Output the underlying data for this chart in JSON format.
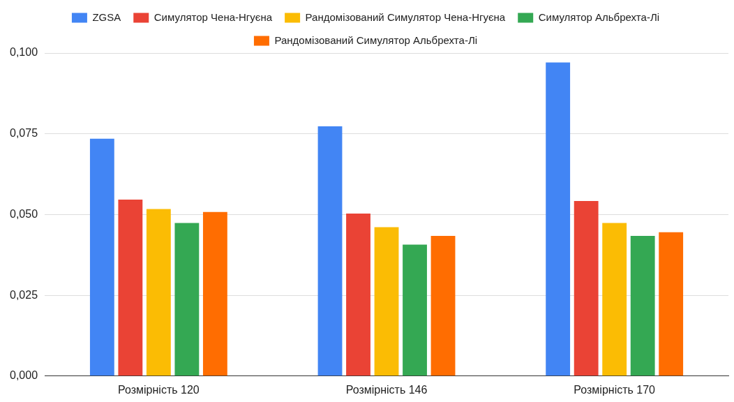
{
  "chart_data": {
    "type": "bar",
    "categories": [
      "Розмірність 120",
      "Розмірність 146",
      "Розмірність 170"
    ],
    "series": [
      {
        "name": "ZGSA",
        "color": "#4285f4",
        "values": [
          0.0735,
          0.0773,
          0.0971
        ]
      },
      {
        "name": "Симулятор Чена-Нгуєна",
        "color": "#ea4335",
        "values": [
          0.0546,
          0.0503,
          0.0542
        ]
      },
      {
        "name": "Рандомізований Симулятор Чена-Нгуєна",
        "color": "#fbbc04",
        "values": [
          0.0517,
          0.0461,
          0.0474
        ]
      },
      {
        "name": "Симулятор Альбрехта-Лі",
        "color": "#34a853",
        "values": [
          0.0474,
          0.0407,
          0.0434
        ]
      },
      {
        "name": "Рандомізований Симулятор Альбрехта-Лі",
        "color": "#ff6d01",
        "values": [
          0.0508,
          0.0434,
          0.0445
        ]
      }
    ],
    "ylim": [
      0,
      0.1
    ],
    "yticks": [
      {
        "value": 0,
        "label": "0,000"
      },
      {
        "value": 0.025,
        "label": "0,025"
      },
      {
        "value": 0.05,
        "label": "0,050"
      },
      {
        "value": 0.075,
        "label": "0,075"
      },
      {
        "value": 0.1,
        "label": "0,100"
      }
    ],
    "grid": "y",
    "legend": "top"
  }
}
